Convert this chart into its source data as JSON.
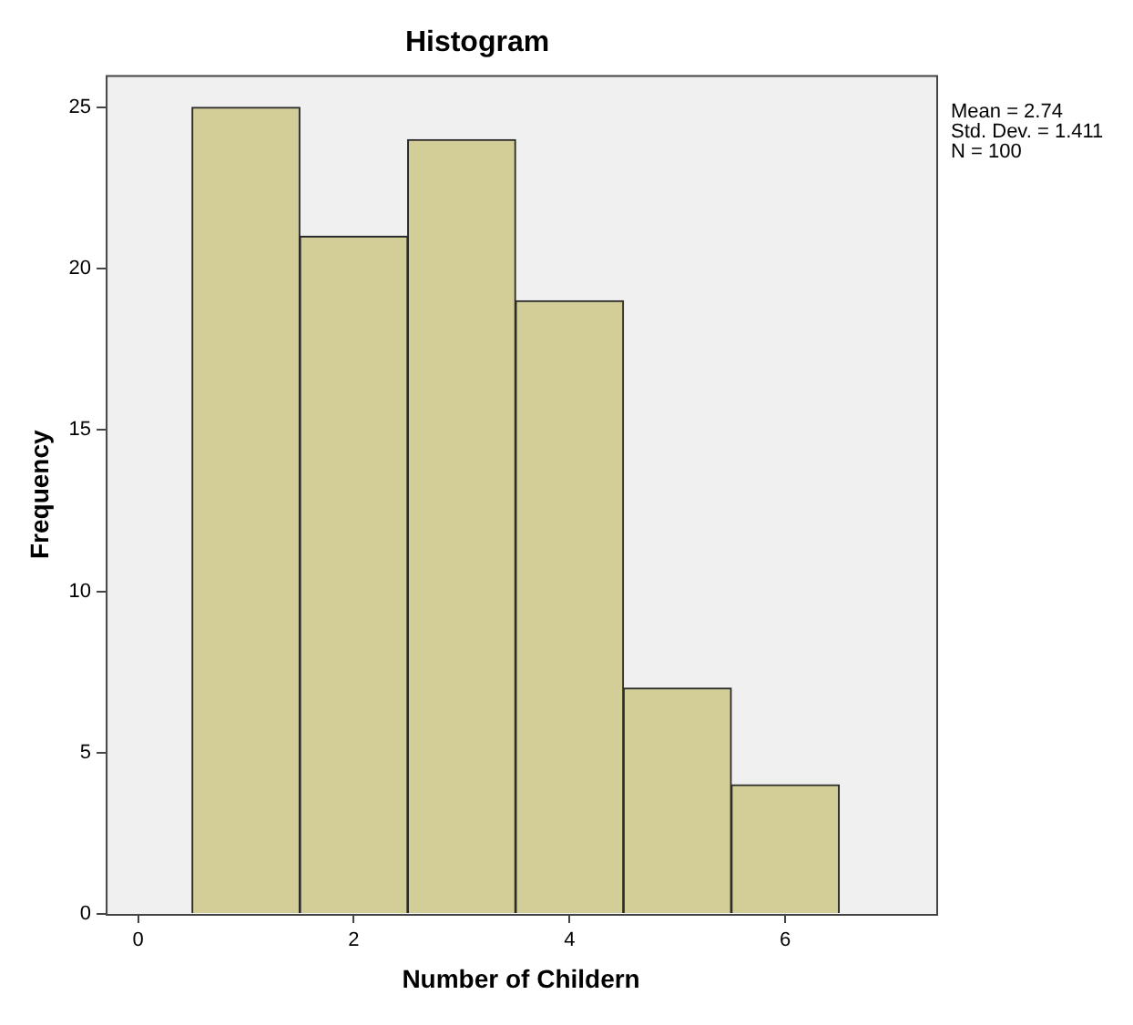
{
  "chart_data": {
    "type": "histogram",
    "title": "Histogram",
    "xlabel": "Number of Childern",
    "ylabel": "Frequency",
    "bins": [
      0.5,
      1.5,
      2.5,
      3.5,
      4.5,
      5.5,
      6.5
    ],
    "values": [
      25,
      21,
      24,
      19,
      7,
      4
    ],
    "color": "#d3ce97",
    "xlim": [
      -0.3,
      7.4
    ],
    "xticks": [
      0,
      2,
      4,
      6
    ],
    "ylim": [
      0,
      26
    ],
    "yticks": [
      0,
      5,
      10,
      15,
      20,
      25
    ],
    "grid": false,
    "legend": false,
    "annotations": [
      "Mean = 2.74",
      "Std. Dev. = 1.411",
      "N = 100"
    ]
  }
}
